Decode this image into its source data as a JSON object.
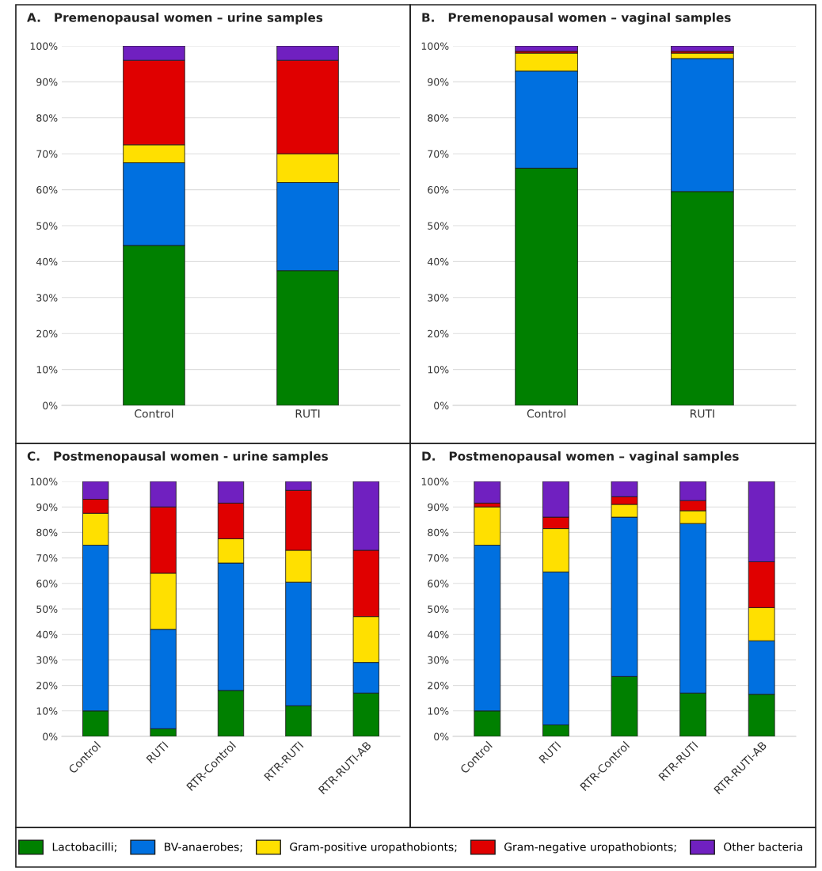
{
  "chart_data": [
    {
      "type": "bar",
      "stacked": true,
      "title": "A.   Premenopausal women – urine samples",
      "categories": [
        "Control",
        "RUTI"
      ],
      "ylim": [
        0,
        100
      ],
      "yticks": [
        {
          "value": 0,
          "label": "0%"
        },
        {
          "value": 10,
          "label": "10%"
        },
        {
          "value": 20,
          "label": "20%"
        },
        {
          "value": 30,
          "label": "30%"
        },
        {
          "value": 40,
          "label": "40%"
        },
        {
          "value": 50,
          "label": "50%"
        },
        {
          "value": 60,
          "label": "60%"
        },
        {
          "value": 70,
          "label": "70%"
        },
        {
          "value": 80,
          "label": "80%"
        },
        {
          "value": 90,
          "label": "90%"
        },
        {
          "value": 100,
          "label": "100%"
        }
      ],
      "grid": "y",
      "series": [
        {
          "color": "#008000",
          "values": [
            44.5,
            37.5
          ]
        },
        {
          "color": "#0070e0",
          "values": [
            23,
            24.5
          ]
        },
        {
          "color": "#ffe000",
          "values": [
            5,
            8
          ]
        },
        {
          "color": "#e00000",
          "values": [
            23.5,
            26
          ]
        },
        {
          "color": "#7020c0",
          "values": [
            4,
            4
          ]
        }
      ]
    },
    {
      "type": "bar",
      "stacked": true,
      "title": "B.   Premenopausal women – vaginal samples",
      "categories": [
        "Control",
        "RUTI"
      ],
      "ylim": [
        0,
        100
      ],
      "yticks": [
        {
          "value": 0,
          "label": "0%"
        },
        {
          "value": 10,
          "label": "10%"
        },
        {
          "value": 20,
          "label": "20%"
        },
        {
          "value": 30,
          "label": "30%"
        },
        {
          "value": 40,
          "label": "40%"
        },
        {
          "value": 50,
          "label": "50%"
        },
        {
          "value": 60,
          "label": "60%"
        },
        {
          "value": 70,
          "label": "70%"
        },
        {
          "value": 80,
          "label": "80%"
        },
        {
          "value": 90,
          "label": "90%"
        },
        {
          "value": 100,
          "label": "100%"
        }
      ],
      "grid": "y",
      "series": [
        {
          "color": "#008000",
          "values": [
            66,
            59.5
          ]
        },
        {
          "color": "#0070e0",
          "values": [
            27,
            37
          ]
        },
        {
          "color": "#ffe000",
          "values": [
            5,
            1.5
          ]
        },
        {
          "color": "#e00000",
          "values": [
            0.5,
            0.5
          ]
        },
        {
          "color": "#7020c0",
          "values": [
            1.5,
            1.5
          ]
        }
      ]
    },
    {
      "type": "bar",
      "stacked": true,
      "title": "C.   Postmenopausal women - urine samples",
      "categories": [
        "Control",
        "RUTI",
        "RTR-Control",
        "RTR-RUTI",
        "RTR-RUTI-AB"
      ],
      "ylim": [
        0,
        100
      ],
      "yticks": [
        {
          "value": 0,
          "label": "0%"
        },
        {
          "value": 10,
          "label": "10%"
        },
        {
          "value": 20,
          "label": "20%"
        },
        {
          "value": 30,
          "label": "30%"
        },
        {
          "value": 40,
          "label": "40%"
        },
        {
          "value": 50,
          "label": "50%"
        },
        {
          "value": 60,
          "label": "60%"
        },
        {
          "value": 70,
          "label": "70%"
        },
        {
          "value": 80,
          "label": "80%"
        },
        {
          "value": 90,
          "label": "90%"
        },
        {
          "value": 100,
          "label": "100%"
        }
      ],
      "grid": "y",
      "series": [
        {
          "color": "#008000",
          "values": [
            10,
            3,
            18,
            12,
            17
          ]
        },
        {
          "color": "#0070e0",
          "values": [
            65,
            39,
            50,
            48.5,
            12
          ]
        },
        {
          "color": "#ffe000",
          "values": [
            12.5,
            22,
            9.5,
            12.5,
            18
          ]
        },
        {
          "color": "#e00000",
          "values": [
            5.5,
            26,
            14,
            23.5,
            26
          ]
        },
        {
          "color": "#7020c0",
          "values": [
            7,
            10,
            8.5,
            3.5,
            27
          ]
        }
      ]
    },
    {
      "type": "bar",
      "stacked": true,
      "title": "D.   Postmenopausal women – vaginal samples",
      "categories": [
        "Control",
        "RUTI",
        "RTR-Control",
        "RTR-RUTI",
        "RTR-RUTI-AB"
      ],
      "ylim": [
        0,
        100
      ],
      "yticks": [
        {
          "value": 0,
          "label": "0%"
        },
        {
          "value": 10,
          "label": "10%"
        },
        {
          "value": 20,
          "label": "20%"
        },
        {
          "value": 30,
          "label": "30%"
        },
        {
          "value": 40,
          "label": "40%"
        },
        {
          "value": 50,
          "label": "50%"
        },
        {
          "value": 60,
          "label": "60%"
        },
        {
          "value": 70,
          "label": "70%"
        },
        {
          "value": 80,
          "label": "80%"
        },
        {
          "value": 90,
          "label": "90%"
        },
        {
          "value": 100,
          "label": "100%"
        }
      ],
      "grid": "y",
      "legend": "bottom",
      "series": [
        {
          "name": "Lactobacilli;",
          "color": "#008000",
          "values": [
            10,
            4.5,
            23.5,
            17,
            16.5
          ]
        },
        {
          "name": "BV-anaerobes;",
          "color": "#0070e0",
          "values": [
            65,
            60,
            62.5,
            66.5,
            21
          ]
        },
        {
          "name": "Gram-positive uropathobionts;",
          "color": "#ffe000",
          "values": [
            15,
            17,
            5,
            5,
            13
          ]
        },
        {
          "name": "Gram-negative uropathobionts;",
          "color": "#e00000",
          "values": [
            1.5,
            4.5,
            3,
            4,
            18
          ]
        },
        {
          "name": "Other bacteria",
          "color": "#7020c0",
          "values": [
            8.5,
            14,
            6,
            7.5,
            31.5
          ]
        }
      ]
    }
  ]
}
